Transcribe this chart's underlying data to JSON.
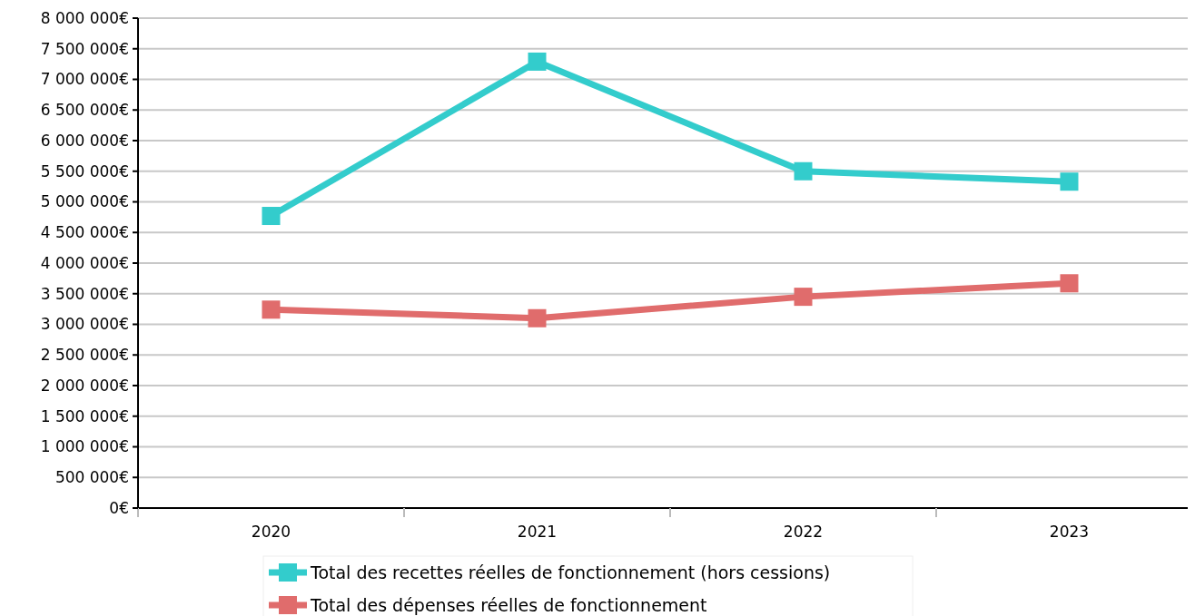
{
  "chart_data": {
    "type": "line",
    "categories": [
      "2020",
      "2021",
      "2022",
      "2023"
    ],
    "series": [
      {
        "name": "Total des recettes réelles de fonctionnement (hors cessions)",
        "color": "#33cccc",
        "values": [
          4770000,
          7290000,
          5500000,
          5330000
        ]
      },
      {
        "name": "Total des dépenses réelles de fonctionnement",
        "color": "#e06c6c",
        "values": [
          3240000,
          3100000,
          3450000,
          3670000
        ]
      }
    ],
    "ylim": [
      0,
      8000000
    ],
    "yticks": [
      {
        "value": 0,
        "label": "0€"
      },
      {
        "value": 500000,
        "label": "500 000€"
      },
      {
        "value": 1000000,
        "label": "1 000 000€"
      },
      {
        "value": 1500000,
        "label": "1 500 000€"
      },
      {
        "value": 2000000,
        "label": "2 000 000€"
      },
      {
        "value": 2500000,
        "label": "2 500 000€"
      },
      {
        "value": 3000000,
        "label": "3 000 000€"
      },
      {
        "value": 3500000,
        "label": "3 500 000€"
      },
      {
        "value": 4000000,
        "label": "4 000 000€"
      },
      {
        "value": 4500000,
        "label": "4 500 000€"
      },
      {
        "value": 5000000,
        "label": "5 000 000€"
      },
      {
        "value": 5500000,
        "label": "5 500 000€"
      },
      {
        "value": 6000000,
        "label": "6 000 000€"
      },
      {
        "value": 6500000,
        "label": "6 500 000€"
      },
      {
        "value": 7000000,
        "label": "7 000 000€"
      },
      {
        "value": 7500000,
        "label": "7 500 000€"
      },
      {
        "value": 8000000,
        "label": "8 000 000€"
      }
    ],
    "grid": "y",
    "legend": "bottom",
    "marker": "square",
    "line_style": "solid"
  }
}
